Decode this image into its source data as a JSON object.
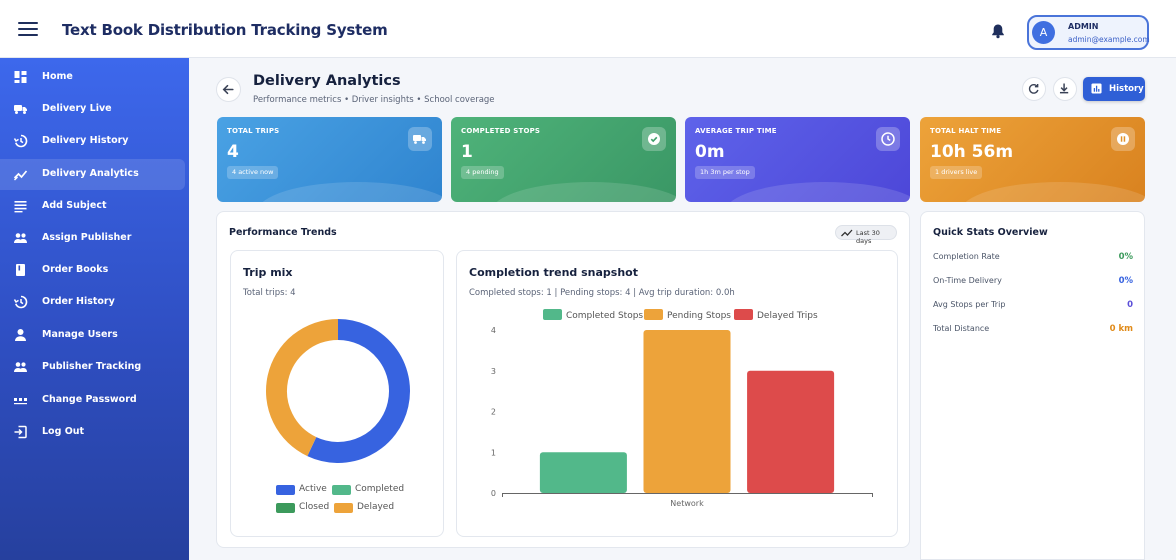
{
  "header": {
    "app_title": "Text Book Distribution Tracking System",
    "user": {
      "avatar_letter": "A",
      "name": "ADMIN",
      "email": "admin@example.com"
    }
  },
  "sidebar": {
    "items": [
      {
        "label": "Home",
        "icon": "dashboard-icon"
      },
      {
        "label": "Delivery Live",
        "icon": "truck-icon"
      },
      {
        "label": "Delivery History",
        "icon": "history-icon"
      },
      {
        "label": "Delivery Analytics",
        "icon": "trend-icon",
        "active": true
      },
      {
        "label": "Add Subject",
        "icon": "list-icon"
      },
      {
        "label": "Assign Publisher",
        "icon": "people-icon"
      },
      {
        "label": "Order Books",
        "icon": "book-icon"
      },
      {
        "label": "Order History",
        "icon": "history-icon"
      },
      {
        "label": "Manage Users",
        "icon": "person-icon"
      },
      {
        "label": "Publisher Tracking",
        "icon": "people-icon"
      },
      {
        "label": "Change Password",
        "icon": "password-icon"
      },
      {
        "label": "Log Out",
        "icon": "logout-icon"
      }
    ]
  },
  "page": {
    "title": "Delivery Analytics",
    "subtitle": "Performance metrics • Driver insights • School coverage",
    "history_label": "History"
  },
  "stats": [
    {
      "label": "TOTAL TRIPS",
      "value": "4",
      "pill": "4 active now",
      "icon": "truck-icon",
      "color_from": "#4aa2e4",
      "color_to": "#2f84cf"
    },
    {
      "label": "COMPLETED STOPS",
      "value": "1",
      "pill": "4 pending",
      "icon": "check-circle-icon",
      "color_from": "#4fb37a",
      "color_to": "#3a9765"
    },
    {
      "label": "AVERAGE TRIP TIME",
      "value": "0m",
      "pill": "1h 3m per stop",
      "icon": "clock-icon",
      "color_from": "#5e63ea",
      "color_to": "#4d47d8"
    },
    {
      "label": "TOTAL HALT TIME",
      "value": "10h 56m",
      "pill": "1 drivers live",
      "icon": "pause-icon",
      "color_from": "#eda33a",
      "color_to": "#d9821f"
    }
  ],
  "trends": {
    "title": "Performance Trends",
    "range_label": "Last 30 days"
  },
  "trip_mix": {
    "title": "Trip mix",
    "meta": "Total trips: 4",
    "legend": [
      {
        "label": "Active",
        "color": "#3763e0"
      },
      {
        "label": "Completed",
        "color": "#52b88a"
      },
      {
        "label": "Closed",
        "color": "#3c9a5c"
      },
      {
        "label": "Delayed",
        "color": "#eda33a"
      }
    ]
  },
  "completion": {
    "title": "Completion trend snapshot",
    "meta": "Completed stops: 1 | Pending stops: 4 | Avg trip duration: 0.0h"
  },
  "chart_data": [
    {
      "type": "pie",
      "title": "Trip mix",
      "labels": [
        "Active",
        "Completed",
        "Closed",
        "Delayed"
      ],
      "values": [
        57,
        0,
        0,
        43
      ],
      "colors": [
        "#3763e0",
        "#52b88a",
        "#3c9a5c",
        "#eda33a"
      ],
      "donut": true,
      "legend_position": "bottom"
    },
    {
      "type": "bar",
      "title": "Completion trend snapshot",
      "categories": [
        "Network"
      ],
      "series": [
        {
          "name": "Completed Stops",
          "values": [
            1
          ],
          "color": "#52b88a"
        },
        {
          "name": "Pending Stops",
          "values": [
            4
          ],
          "color": "#eda33a"
        },
        {
          "name": "Delayed Trips",
          "values": [
            3
          ],
          "color": "#dd4b4b"
        }
      ],
      "ylim": [
        0,
        4
      ],
      "yticks": [
        "0",
        "1",
        "2",
        "3",
        "4"
      ],
      "grid": false,
      "legend_position": "top"
    }
  ],
  "quick_stats": {
    "title": "Quick Stats Overview",
    "rows": [
      {
        "label": "Completion Rate",
        "value": "0%",
        "color": "#3c9a5c"
      },
      {
        "label": "On-Time Delivery",
        "value": "0%",
        "color": "#3763e0"
      },
      {
        "label": "Avg Stops per Trip",
        "value": "0",
        "color": "#5b4fd8"
      },
      {
        "label": "Total Distance",
        "value": "0 km",
        "color": "#e08a18"
      }
    ]
  }
}
